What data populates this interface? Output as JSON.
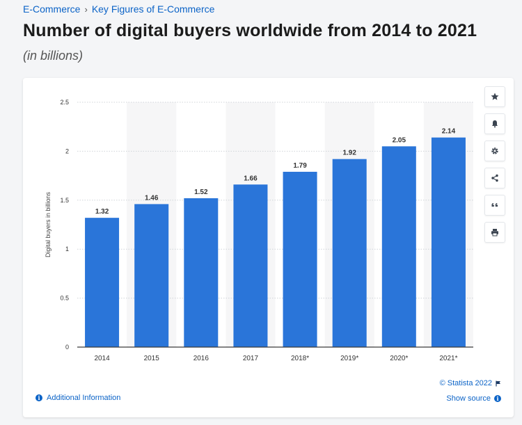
{
  "breadcrumb": {
    "parent": "E-Commerce",
    "separator": "›",
    "current": "Key Figures of E-Commerce"
  },
  "header": {
    "title": "Number of digital buyers worldwide from 2014 to 2021",
    "subtitle": "(in billions)"
  },
  "colors": {
    "bar": "#2a75d9",
    "link": "#0b63c7"
  },
  "toolbar": {
    "buttons": [
      {
        "icon": "star-icon"
      },
      {
        "icon": "bell-icon"
      },
      {
        "icon": "gear-icon"
      },
      {
        "icon": "share-icon"
      },
      {
        "icon": "quote-icon"
      },
      {
        "icon": "print-icon"
      }
    ]
  },
  "footer": {
    "copyright": "© Statista 2022",
    "show_source": "Show source",
    "additional_info": "Additional Information"
  },
  "chart_data": {
    "type": "bar",
    "categories": [
      "2014",
      "2015",
      "2016",
      "2017",
      "2018*",
      "2019*",
      "2020*",
      "2021*"
    ],
    "values": [
      1.32,
      1.46,
      1.52,
      1.66,
      1.79,
      1.92,
      2.05,
      2.14
    ],
    "value_labels": [
      "1.32",
      "1.46",
      "1.52",
      "1.66",
      "1.79",
      "1.92",
      "2.05",
      "2.14"
    ],
    "ylabel": "Digital buyers in billions",
    "ylim": [
      0,
      2.5
    ],
    "yticks": [
      0,
      0.5,
      1,
      1.5,
      2,
      2.5
    ],
    "ytick_labels": [
      "0",
      "0.5",
      "1",
      "1.5",
      "2",
      "2.5"
    ],
    "grid": true,
    "alternating_bands": true
  }
}
